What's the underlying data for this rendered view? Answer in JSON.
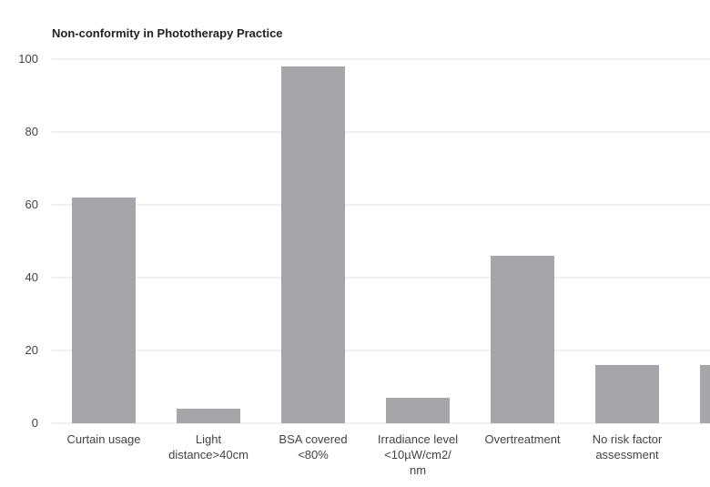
{
  "chart_data": {
    "type": "bar",
    "title": "Non-conformity in Phototherapy Practice",
    "categories": [
      "Curtain usage",
      "Light\ndistance>40cm",
      "BSA covered\n<80%",
      "Irradiance level\n<10µW/cm2/\nnm",
      "Overtreatment",
      "No risk factor\nassessment",
      null
    ],
    "values": [
      62,
      4,
      98,
      7,
      46,
      16,
      16
    ],
    "color": "#a6a6aa",
    "ylim": [
      0,
      100
    ],
    "yticks": [
      0,
      20,
      40,
      60,
      80,
      100
    ],
    "grid": true
  }
}
